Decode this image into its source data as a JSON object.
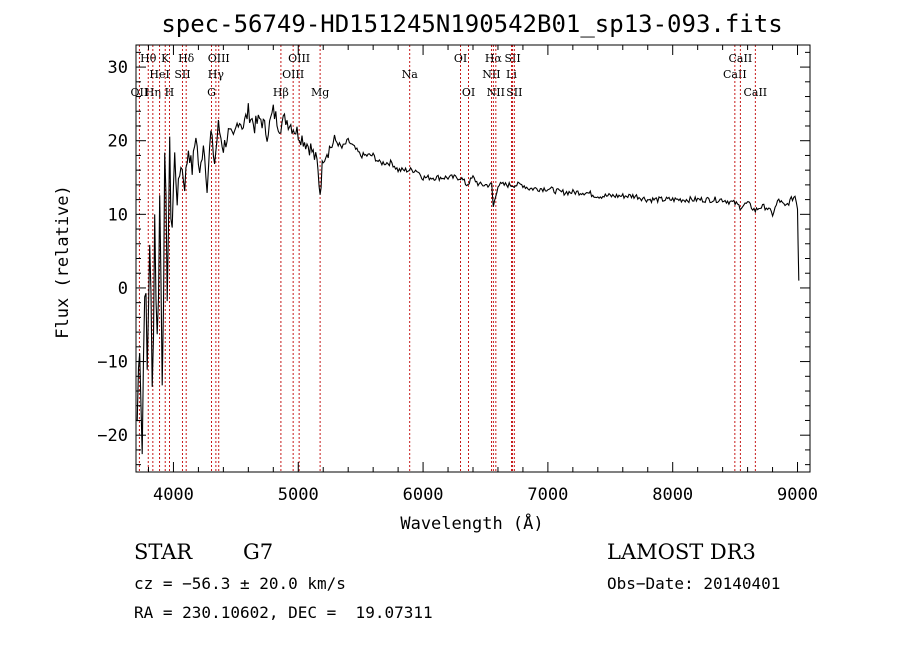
{
  "chart_data": {
    "type": "line",
    "title": "spec-56749-HD151245N190542B01_sp13-093.fits",
    "xlabel": "Wavelength (Å)",
    "ylabel": "Flux (relative)",
    "xlim": [
      3700,
      9100
    ],
    "ylim": [
      -25,
      33
    ],
    "xticks": [
      4000,
      5000,
      6000,
      7000,
      8000,
      9000
    ],
    "yticks": [
      -20,
      -10,
      0,
      10,
      20,
      30
    ],
    "series": [
      {
        "name": "spectrum",
        "x": [
          3710,
          3730,
          3750,
          3770,
          3790,
          3810,
          3830,
          3850,
          3870,
          3890,
          3910,
          3930,
          3950,
          3970,
          3990,
          4010,
          4030,
          4060,
          4090,
          4120,
          4150,
          4180,
          4210,
          4240,
          4270,
          4300,
          4330,
          4360,
          4400,
          4440,
          4480,
          4520,
          4560,
          4600,
          4650,
          4700,
          4750,
          4800,
          4850,
          4900,
          4950,
          5000,
          5050,
          5100,
          5150,
          5175,
          5200,
          5250,
          5300,
          5350,
          5400,
          5450,
          5500,
          5550,
          5600,
          5650,
          5700,
          5750,
          5800,
          5850,
          5890,
          5950,
          6000,
          6050,
          6100,
          6150,
          6200,
          6250,
          6300,
          6350,
          6400,
          6450,
          6500,
          6550,
          6563,
          6600,
          6650,
          6700,
          6750,
          6800,
          6850,
          6900,
          7000,
          7100,
          7200,
          7300,
          7400,
          7500,
          7600,
          7700,
          7800,
          7900,
          8000,
          8100,
          8200,
          8300,
          8400,
          8500,
          8540,
          8600,
          8662,
          8700,
          8750,
          8800,
          8850,
          8900,
          8950,
          8980,
          9000,
          9010
        ],
        "y": [
          -18,
          -5,
          -22,
          3,
          -12,
          8,
          -15,
          10,
          -8,
          12,
          -10,
          14,
          2,
          16,
          9,
          18,
          12,
          17,
          14,
          19,
          16,
          21,
          15,
          20,
          14,
          21,
          17,
          22,
          19,
          21,
          20,
          23,
          22,
          24,
          22,
          23,
          21,
          24,
          22,
          23,
          22,
          21,
          20,
          19,
          17,
          13,
          18,
          19,
          20,
          19,
          20,
          19,
          18,
          18,
          18,
          17,
          17,
          17,
          16,
          16,
          16,
          16,
          15,
          15,
          15,
          15,
          15,
          15,
          15,
          14,
          15,
          14,
          14,
          14,
          11,
          14,
          14,
          14,
          14,
          14,
          13.5,
          13.5,
          13.5,
          13,
          13,
          13,
          12.5,
          12.5,
          12.5,
          12.5,
          12,
          12,
          12,
          12,
          12,
          12,
          12,
          11.5,
          11,
          11.5,
          10.5,
          11,
          11,
          10,
          12,
          11,
          12,
          12.5,
          11,
          1
        ]
      }
    ],
    "lines": [
      {
        "name": "O II",
        "wave": 3727,
        "row": 3,
        "label": "OII"
      },
      {
        "name": "H theta",
        "wave": 3798,
        "row": 1,
        "label": "Hθ"
      },
      {
        "name": "H eta",
        "wave": 3835,
        "row": 3,
        "label": "Hη"
      },
      {
        "name": "He I",
        "wave": 3889,
        "row": 2,
        "label": "HeI"
      },
      {
        "name": "K",
        "wave": 3934,
        "row": 1,
        "label": "K"
      },
      {
        "name": "H",
        "wave": 3968,
        "row": 3,
        "label": "H"
      },
      {
        "name": "S II",
        "wave": 4072,
        "row": 2,
        "label": "SII"
      },
      {
        "name": "H delta",
        "wave": 4102,
        "row": 1,
        "label": "Hδ"
      },
      {
        "name": "G",
        "wave": 4305,
        "row": 3,
        "label": "G"
      },
      {
        "name": "H gamma",
        "wave": 4340,
        "row": 2,
        "label": "Hγ"
      },
      {
        "name": "O III",
        "wave": 4363,
        "row": 1,
        "label": "OIII"
      },
      {
        "name": "H beta",
        "wave": 4861,
        "row": 3,
        "label": "Hβ"
      },
      {
        "name": "O III 4959",
        "wave": 4959,
        "row": 2,
        "label": "OIII"
      },
      {
        "name": "O III 5007",
        "wave": 5007,
        "row": 1,
        "label": "OIII"
      },
      {
        "name": "Mg",
        "wave": 5175,
        "row": 3,
        "label": "Mg"
      },
      {
        "name": "Na",
        "wave": 5893,
        "row": 2,
        "label": "Na"
      },
      {
        "name": "O I",
        "wave": 6300,
        "row": 1,
        "label": "OI"
      },
      {
        "name": "O I 6364",
        "wave": 6364,
        "row": 3,
        "label": "OI"
      },
      {
        "name": "N II 6548",
        "wave": 6548,
        "row": 2,
        "label": "NII"
      },
      {
        "name": "H alpha",
        "wave": 6563,
        "row": 1,
        "label": "Hα"
      },
      {
        "name": "N II 6583",
        "wave": 6583,
        "row": 3,
        "label": "NII"
      },
      {
        "name": "Li",
        "wave": 6708,
        "row": 2,
        "label": "Li"
      },
      {
        "name": "S II 6717",
        "wave": 6717,
        "row": 1,
        "label": "SII"
      },
      {
        "name": "S II 6731",
        "wave": 6731,
        "row": 3,
        "label": "SII"
      },
      {
        "name": "Ca II 8498",
        "wave": 8498,
        "row": 2,
        "label": "CaII"
      },
      {
        "name": "Ca II 8542",
        "wave": 8542,
        "row": 1,
        "label": "CaII"
      },
      {
        "name": "Ca II 8662",
        "wave": 8662,
        "row": 3,
        "label": "CaII"
      }
    ],
    "colors": {
      "spectrum": "#000000",
      "lines": "#c00000",
      "axis": "#000000"
    }
  },
  "info": {
    "class_label": "STAR",
    "subclass": "G7",
    "survey": "LAMOST DR3",
    "cz": "cz = −56.3 ± 20.0 km/s",
    "obs_date": "Obs−Date: 20140401",
    "coords": "RA = 230.10602, DEC =  19.07311"
  }
}
